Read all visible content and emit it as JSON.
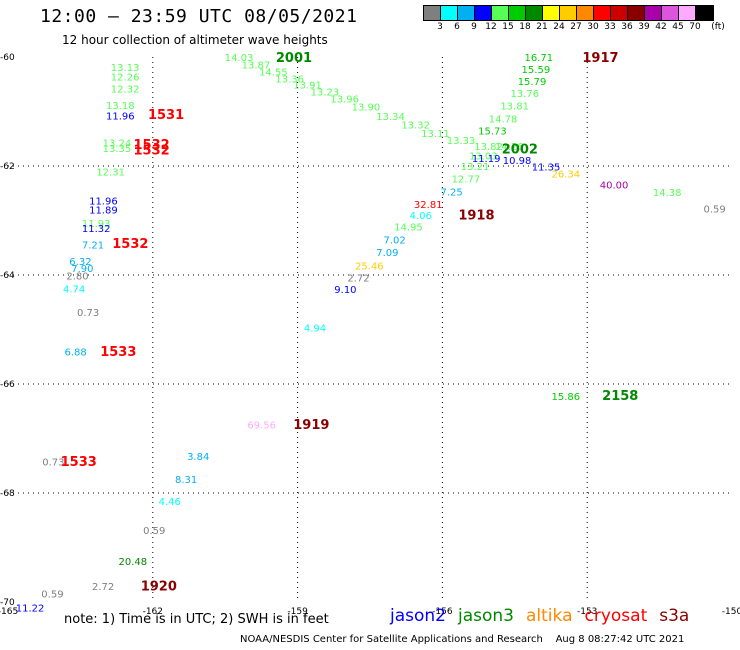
{
  "header": {
    "title": "12:00 – 23:59 UTC 08/05/2021",
    "subtitle": "12 hour collection of altimeter wave heights"
  },
  "colorbar": {
    "unit": "(ft)",
    "swatches": [
      {
        "label": "3",
        "color": "#7f7f7f"
      },
      {
        "label": "6",
        "color": "#00ffff"
      },
      {
        "label": "9",
        "color": "#00b0f0"
      },
      {
        "label": "12",
        "color": "#0000ff"
      },
      {
        "label": "15",
        "color": "#55ff55"
      },
      {
        "label": "18",
        "color": "#00cc00"
      },
      {
        "label": "21",
        "color": "#008800"
      },
      {
        "label": "24",
        "color": "#ffff00"
      },
      {
        "label": "27",
        "color": "#ffcc00"
      },
      {
        "label": "30",
        "color": "#ff8800"
      },
      {
        "label": "33",
        "color": "#ff0000"
      },
      {
        "label": "36",
        "color": "#cc0000"
      },
      {
        "label": "39",
        "color": "#880000"
      },
      {
        "label": "42",
        "color": "#aa00aa"
      },
      {
        "label": "45",
        "color": "#dd55dd"
      },
      {
        "label": "70",
        "color": "#ffaaff"
      },
      {
        "label": "",
        "color": "#000000"
      }
    ]
  },
  "chart_data": {
    "type": "scatter",
    "title": "12:00 – 23:59 UTC 08/05/2021",
    "subtitle": "12 hour collection of altimeter wave heights",
    "xlim": [
      -165,
      -150
    ],
    "ylim": [
      -70,
      -60
    ],
    "x_ticks": [
      -165,
      -162,
      -159,
      -156,
      -153,
      -150
    ],
    "y_ticks": [
      -60,
      -62,
      -64,
      -66,
      -68,
      -70
    ],
    "x_tick_labels": [
      "-165",
      "-162",
      "-159",
      "-156",
      "-153",
      "-150"
    ],
    "y_tick_labels": [
      "-60",
      "-62",
      "-64",
      "-66",
      "-68",
      "-70"
    ],
    "grid": true,
    "grid_style": "dotted",
    "points": [
      {
        "lon": -162.87,
        "lat": -60.18,
        "text": "13.13",
        "color": "#55ff55"
      },
      {
        "lon": -162.87,
        "lat": -60.36,
        "text": "12.26",
        "color": "#55ff55"
      },
      {
        "lon": -162.87,
        "lat": -60.58,
        "text": "12.32",
        "color": "#55ff55"
      },
      {
        "lon": -162.97,
        "lat": -60.88,
        "text": "13.18",
        "color": "#55ff55"
      },
      {
        "lon": -162.97,
        "lat": -61.07,
        "text": "11.96",
        "color": "#0000ff"
      },
      {
        "lon": -163.04,
        "lat": -61.57,
        "text": "13.24",
        "color": "#55ff55"
      },
      {
        "lon": -163.04,
        "lat": -61.67,
        "text": "13.35",
        "color": "#55ff55"
      },
      {
        "lon": -163.17,
        "lat": -62.1,
        "text": "12.31",
        "color": "#55ff55"
      },
      {
        "lon": -163.32,
        "lat": -62.63,
        "text": "11.96",
        "color": "#0000ff"
      },
      {
        "lon": -163.32,
        "lat": -62.8,
        "text": "11.89",
        "color": "#0000ff"
      },
      {
        "lon": -163.47,
        "lat": -63.05,
        "text": "11.93",
        "color": "#55ff55"
      },
      {
        "lon": -163.47,
        "lat": -63.14,
        "text": "11.32",
        "color": "#0000ff"
      },
      {
        "lon": -163.47,
        "lat": -63.44,
        "text": "7.21",
        "color": "#00b0f0"
      },
      {
        "lon": -163.73,
        "lat": -63.74,
        "text": "6.32",
        "color": "#00b0f0"
      },
      {
        "lon": -163.69,
        "lat": -63.87,
        "text": "7.90",
        "color": "#00b0f0"
      },
      {
        "lon": -163.79,
        "lat": -64.01,
        "text": "2.80",
        "color": "#7f7f7f"
      },
      {
        "lon": -163.86,
        "lat": -64.25,
        "text": "4.74",
        "color": "#00ffff"
      },
      {
        "lon": -163.57,
        "lat": -64.68,
        "text": "0.73",
        "color": "#7f7f7f"
      },
      {
        "lon": -163.83,
        "lat": -65.4,
        "text": "6.88",
        "color": "#00b0f0"
      },
      {
        "lon": -164.29,
        "lat": -67.42,
        "text": "0.73",
        "color": "#7f7f7f"
      },
      {
        "lon": -160.51,
        "lat": -60.0,
        "text": "14.03",
        "color": "#55ff55"
      },
      {
        "lon": -160.16,
        "lat": -60.14,
        "text": "13.87",
        "color": "#55ff55"
      },
      {
        "lon": -159.8,
        "lat": -60.27,
        "text": "14.55",
        "color": "#55ff55"
      },
      {
        "lon": -159.46,
        "lat": -60.39,
        "text": "13.36",
        "color": "#55ff55"
      },
      {
        "lon": -159.09,
        "lat": -60.5,
        "text": "13.91",
        "color": "#55ff55"
      },
      {
        "lon": -158.73,
        "lat": -60.63,
        "text": "13.23",
        "color": "#55ff55"
      },
      {
        "lon": -158.32,
        "lat": -60.76,
        "text": "13.96",
        "color": "#55ff55"
      },
      {
        "lon": -157.88,
        "lat": -60.91,
        "text": "13.90",
        "color": "#55ff55"
      },
      {
        "lon": -157.37,
        "lat": -61.08,
        "text": "13.34",
        "color": "#55ff55"
      },
      {
        "lon": -156.85,
        "lat": -61.24,
        "text": "13.32",
        "color": "#55ff55"
      },
      {
        "lon": -156.44,
        "lat": -61.39,
        "text": "13.11",
        "color": "#55ff55"
      },
      {
        "lon": -155.91,
        "lat": -61.52,
        "text": "13.33",
        "color": "#55ff55"
      },
      {
        "lon": -155.34,
        "lat": -61.63,
        "text": "13.82",
        "color": "#55ff55"
      },
      {
        "lon": -154.91,
        "lat": -61.63,
        "text": "14.26",
        "color": "#55ff55"
      },
      {
        "lon": -155.45,
        "lat": -61.81,
        "text": "13.03",
        "color": "#55ff55"
      },
      {
        "lon": -155.62,
        "lat": -62.0,
        "text": "13.21",
        "color": "#55ff55"
      },
      {
        "lon": -155.81,
        "lat": -62.23,
        "text": "12.77",
        "color": "#55ff55"
      },
      {
        "lon": -156.04,
        "lat": -62.47,
        "text": "7.25",
        "color": "#00b0f0"
      },
      {
        "lon": -156.59,
        "lat": -62.7,
        "text": "32.81",
        "color": "#ff0000"
      },
      {
        "lon": -156.68,
        "lat": -62.9,
        "text": "4.06",
        "color": "#00ffff"
      },
      {
        "lon": -157.0,
        "lat": -63.11,
        "text": "14.95",
        "color": "#55ff55"
      },
      {
        "lon": -157.22,
        "lat": -63.35,
        "text": "7.02",
        "color": "#00b0f0"
      },
      {
        "lon": -157.37,
        "lat": -63.58,
        "text": "7.09",
        "color": "#00b0f0"
      },
      {
        "lon": -157.81,
        "lat": -63.83,
        "text": "25.46",
        "color": "#ffcc00"
      },
      {
        "lon": -157.97,
        "lat": -64.05,
        "text": "2.72",
        "color": "#7f7f7f"
      },
      {
        "lon": -158.24,
        "lat": -64.26,
        "text": "9.10",
        "color": "#0000ff"
      },
      {
        "lon": -158.87,
        "lat": -64.96,
        "text": "4.94",
        "color": "#00ffff"
      },
      {
        "lon": -154.3,
        "lat": -60.0,
        "text": "16.71",
        "color": "#00cc00"
      },
      {
        "lon": -154.36,
        "lat": -60.22,
        "text": "15.59",
        "color": "#00cc00"
      },
      {
        "lon": -154.44,
        "lat": -60.44,
        "text": "15.79",
        "color": "#00cc00"
      },
      {
        "lon": -154.59,
        "lat": -60.66,
        "text": "13.76",
        "color": "#55ff55"
      },
      {
        "lon": -154.8,
        "lat": -60.89,
        "text": "13.81",
        "color": "#55ff55"
      },
      {
        "lon": -155.04,
        "lat": -61.13,
        "text": "14.78",
        "color": "#55ff55"
      },
      {
        "lon": -155.26,
        "lat": -61.35,
        "text": "15.73",
        "color": "#00cc00"
      },
      {
        "lon": -155.39,
        "lat": -61.85,
        "text": "11.19",
        "color": "#0000ff"
      },
      {
        "lon": -154.75,
        "lat": -61.89,
        "text": "10.98",
        "color": "#0000ff"
      },
      {
        "lon": -154.15,
        "lat": -62.01,
        "text": "11.35",
        "color": "#0000ff"
      },
      {
        "lon": -153.74,
        "lat": -62.14,
        "text": "26.34",
        "color": "#ffcc00"
      },
      {
        "lon": -152.74,
        "lat": -62.34,
        "text": "40.00",
        "color": "#aa00aa"
      },
      {
        "lon": -151.64,
        "lat": -62.48,
        "text": "14.38",
        "color": "#55ff55"
      },
      {
        "lon": -150.59,
        "lat": -62.78,
        "text": "0.59",
        "color": "#7f7f7f"
      },
      {
        "lon": -153.74,
        "lat": -66.22,
        "text": "15.86",
        "color": "#00cc00"
      },
      {
        "lon": -160.04,
        "lat": -66.74,
        "text": "69.56",
        "color": "#ffaaff"
      },
      {
        "lon": -161.29,
        "lat": -67.32,
        "text": "3.84",
        "color": "#00b0f0"
      },
      {
        "lon": -161.54,
        "lat": -67.74,
        "text": "8.31",
        "color": "#00b0f0"
      },
      {
        "lon": -161.88,
        "lat": -68.15,
        "text": "4.46",
        "color": "#00ffff"
      },
      {
        "lon": -162.2,
        "lat": -68.68,
        "text": "0.59",
        "color": "#7f7f7f"
      },
      {
        "lon": -162.71,
        "lat": -69.25,
        "text": "20.48",
        "color": "#008800"
      },
      {
        "lon": -163.26,
        "lat": -69.71,
        "text": "2.72",
        "color": "#7f7f7f"
      },
      {
        "lon": -164.31,
        "lat": -69.84,
        "text": "0.59",
        "color": "#7f7f7f"
      },
      {
        "lon": -164.84,
        "lat": -70.1,
        "text": "11.22",
        "color": "#0000ff"
      }
    ],
    "pass_labels": [
      {
        "lon": -162.1,
        "lat": -61.05,
        "text": "1531",
        "color": "#ff0000"
      },
      {
        "lon": -162.4,
        "lat": -61.6,
        "text": "1532",
        "color": "#ff0000"
      },
      {
        "lon": -162.4,
        "lat": -61.7,
        "text": "1532",
        "color": "#ff0000"
      },
      {
        "lon": -162.84,
        "lat": -63.41,
        "text": "1532",
        "color": "#ff0000"
      },
      {
        "lon": -163.09,
        "lat": -65.39,
        "text": "1533",
        "color": "#ff0000"
      },
      {
        "lon": -163.91,
        "lat": -67.41,
        "text": "1533",
        "color": "#ff0000"
      },
      {
        "lon": -159.45,
        "lat": -60.0,
        "text": "2001",
        "color": "#008800"
      },
      {
        "lon": -153.1,
        "lat": -60.0,
        "text": "1917",
        "color": "#880000"
      },
      {
        "lon": -154.77,
        "lat": -61.68,
        "text": "2002",
        "color": "#008800"
      },
      {
        "lon": -155.67,
        "lat": -62.89,
        "text": "1918",
        "color": "#880000"
      },
      {
        "lon": -159.09,
        "lat": -66.73,
        "text": "1919",
        "color": "#880000"
      },
      {
        "lon": -152.69,
        "lat": -66.2,
        "text": "2158",
        "color": "#008800"
      },
      {
        "lon": -162.25,
        "lat": -69.7,
        "text": "1920",
        "color": "#880000"
      }
    ]
  },
  "footer": {
    "note": "note: 1) Time is in UTC; 2) SWH is in feet",
    "legend": [
      {
        "label": "jason2",
        "color": "#0000ff"
      },
      {
        "label": "jason3",
        "color": "#008800"
      },
      {
        "label": "altika",
        "color": "#ff8800"
      },
      {
        "label": "cryosat",
        "color": "#ff0000"
      },
      {
        "label": "s3a",
        "color": "#880000"
      }
    ],
    "credit": "NOAA/NESDIS Center for Satellite Applications and Research",
    "timestamp": "Aug  8 08:27:42 UTC 2021"
  }
}
